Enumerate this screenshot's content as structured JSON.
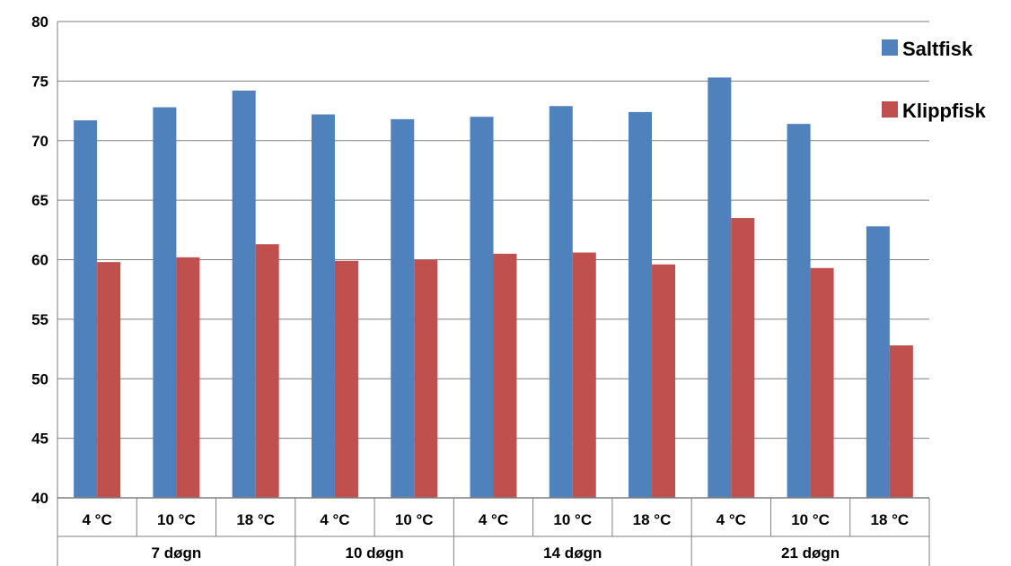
{
  "chart_data": {
    "type": "bar",
    "title": "",
    "xlabel": "",
    "ylabel": "",
    "ylim": [
      40,
      80
    ],
    "yticks": [
      40,
      45,
      50,
      55,
      60,
      65,
      70,
      75,
      80
    ],
    "grid": true,
    "legend_position": "top-right",
    "groups": [
      {
        "label": "7 døgn",
        "categories": [
          "4 °C",
          "10 °C",
          "18 °C"
        ]
      },
      {
        "label": "10 døgn",
        "categories": [
          "4 °C",
          "10 °C"
        ]
      },
      {
        "label": "14 døgn",
        "categories": [
          "4 °C",
          "10 °C",
          "18 °C"
        ]
      },
      {
        "label": "21 døgn",
        "categories": [
          "4 °C",
          "10 °C",
          "18 °C"
        ]
      }
    ],
    "series": [
      {
        "name": "Saltfisk",
        "color": "#4f81bd",
        "values": [
          71.7,
          72.8,
          74.2,
          72.2,
          71.8,
          72.0,
          72.9,
          72.4,
          75.3,
          71.4,
          62.8
        ]
      },
      {
        "name": "Klippfisk",
        "color": "#c0504d",
        "values": [
          59.8,
          60.2,
          61.3,
          59.9,
          60.0,
          60.5,
          60.6,
          59.6,
          63.5,
          59.3,
          52.8
        ]
      }
    ]
  }
}
